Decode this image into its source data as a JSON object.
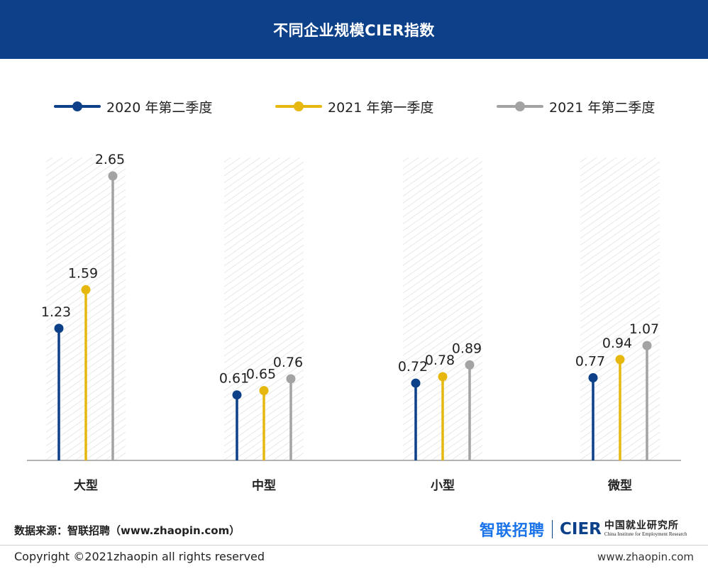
{
  "header": {
    "title": "不同企业规模CIER指数"
  },
  "chart_data": {
    "type": "lollipop",
    "title": "不同企业规模CIER指数",
    "categories": [
      "大型",
      "中型",
      "小型",
      "微型"
    ],
    "series": [
      {
        "name": "2020 年第二季度",
        "color": "#0c4088",
        "values": [
          1.23,
          0.61,
          0.72,
          0.77
        ]
      },
      {
        "name": "2021 年第一季度",
        "color": "#e6b80f",
        "values": [
          1.59,
          0.65,
          0.78,
          0.94
        ]
      },
      {
        "name": "2021 年第二季度",
        "color": "#a3a3a3",
        "values": [
          2.65,
          0.76,
          0.89,
          1.07
        ]
      }
    ],
    "ylim": [
      0,
      3
    ],
    "grid": false,
    "legend_position": "top"
  },
  "footer": {
    "source": "数据来源：智联招聘（www.zhaopin.com）",
    "brand_zhaopin": "智联招聘",
    "brand_cier": "CIER",
    "brand_org_cn": "中国就业研究所",
    "brand_org_en": "China Institute for Employment Research",
    "copyright": "Copyright ©2021zhaopin all rights reserved",
    "website": "www.zhaopin.com"
  }
}
